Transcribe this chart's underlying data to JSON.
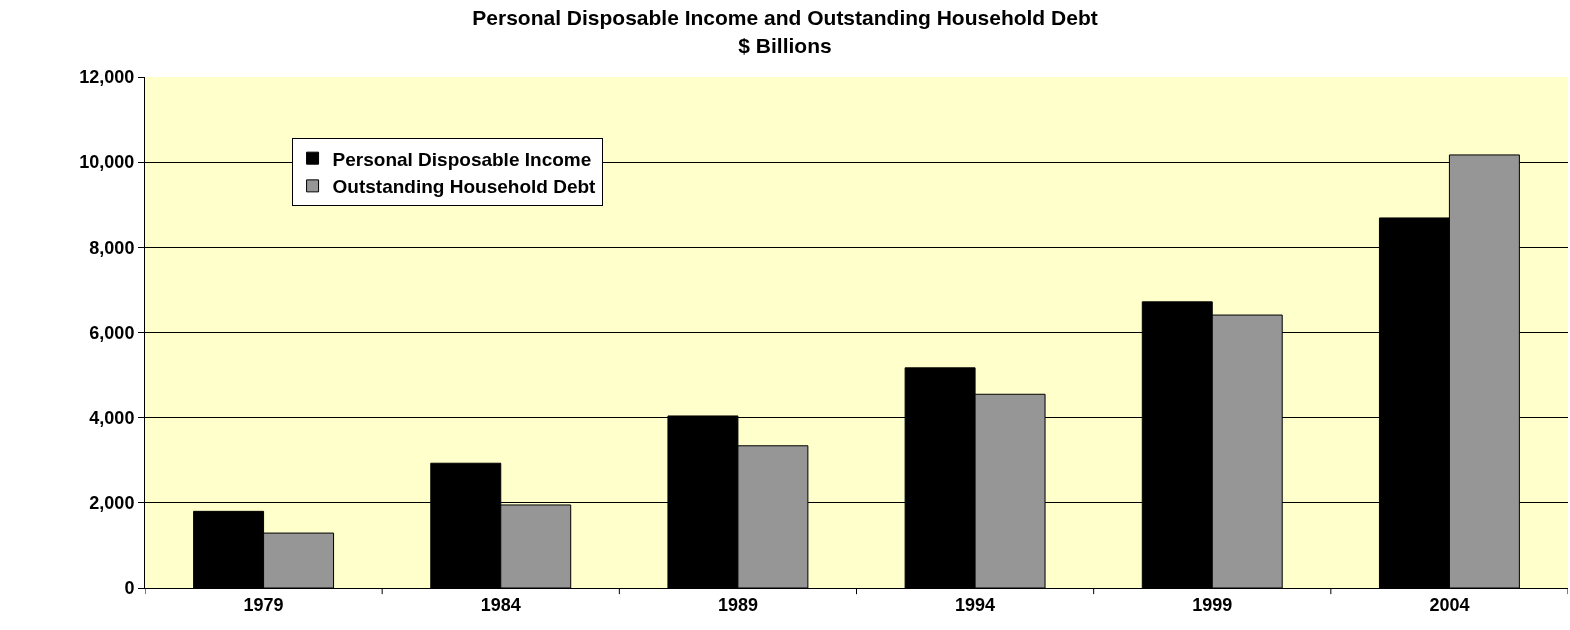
{
  "chart_data": {
    "type": "bar",
    "title": "Personal Disposable Income and Outstanding Household Debt",
    "subtitle": "$ Billions",
    "categories": [
      "1979",
      "1984",
      "1989",
      "1994",
      "1999",
      "2004"
    ],
    "series": [
      {
        "name": "Personal Disposable Income",
        "color": "#000000",
        "values": [
          1800,
          2930,
          4040,
          5170,
          6720,
          8690
        ]
      },
      {
        "name": "Outstanding Household Debt",
        "color": "#969696",
        "values": [
          1290,
          1950,
          3340,
          4550,
          6410,
          10170
        ]
      }
    ],
    "ylim": [
      0,
      12000
    ],
    "yticks": [
      0,
      {
        "value": 2000,
        "label": "2,000"
      },
      {
        "value": 4000,
        "label": "4,000"
      },
      {
        "value": 6000,
        "label": "6,000"
      },
      {
        "value": 8000,
        "label": "8,000"
      },
      {
        "value": 10000,
        "label": "10,000"
      },
      {
        "value": 12000,
        "label": "12,000"
      }
    ],
    "grid": "y",
    "legend": "top left"
  }
}
